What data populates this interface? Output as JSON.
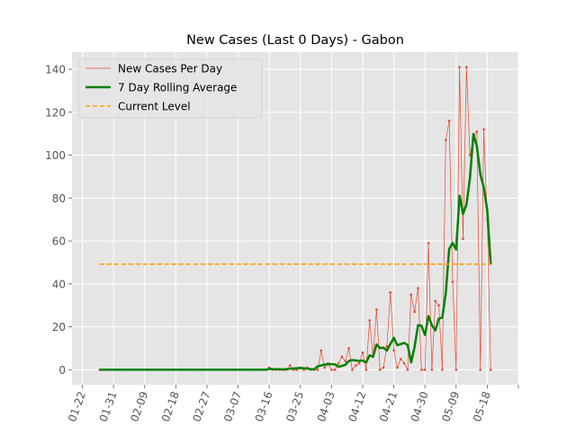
{
  "chart_data": {
    "type": "line",
    "title": "New Cases (Last 0 Days) - Gabon",
    "xlabel": "",
    "ylabel": "",
    "x_start": "2020-01-27",
    "x_end": "2020-05-22",
    "xlim": [
      "2020-01-19",
      "2020-05-27"
    ],
    "ylim": [
      -7,
      148
    ],
    "grid": true,
    "legend_placement": "top-left",
    "x_ticks": [
      {
        "date": "2020-01-22",
        "label": "01-22"
      },
      {
        "date": "2020-01-31",
        "label": "01-31"
      },
      {
        "date": "2020-02-09",
        "label": "02-09"
      },
      {
        "date": "2020-02-18",
        "label": "02-18"
      },
      {
        "date": "2020-02-27",
        "label": "02-27"
      },
      {
        "date": "2020-03-07",
        "label": "03-07"
      },
      {
        "date": "2020-03-16",
        "label": "03-16"
      },
      {
        "date": "2020-03-25",
        "label": "03-25"
      },
      {
        "date": "2020-04-03",
        "label": "04-03"
      },
      {
        "date": "2020-04-12",
        "label": "04-12"
      },
      {
        "date": "2020-04-21",
        "label": "04-21"
      },
      {
        "date": "2020-04-30",
        "label": "04-30"
      },
      {
        "date": "2020-05-09",
        "label": "05-09"
      },
      {
        "date": "2020-05-18",
        "label": "05-18"
      },
      {
        "date": "2020-05-27",
        "label": ""
      }
    ],
    "y_ticks": [
      0,
      20,
      40,
      60,
      80,
      100,
      120,
      140
    ],
    "series": [
      {
        "name": "New Cases Per Day",
        "color": "#e24a33",
        "style": "thin-line-with-markers",
        "values": [
          0,
          0,
          0,
          0,
          0,
          0,
          0,
          0,
          0,
          0,
          0,
          0,
          0,
          0,
          0,
          0,
          0,
          0,
          0,
          0,
          0,
          0,
          0,
          0,
          0,
          0,
          0,
          0,
          0,
          0,
          0,
          0,
          0,
          0,
          0,
          0,
          0,
          0,
          0,
          0,
          0,
          0,
          0,
          0,
          0,
          0,
          0,
          0,
          0,
          1,
          0,
          0,
          0,
          0,
          0,
          2,
          0,
          0,
          1,
          0,
          1,
          0,
          0,
          0,
          9,
          1,
          3,
          0,
          0,
          3,
          6,
          4,
          10,
          0,
          2,
          3,
          8,
          0,
          23,
          6,
          28,
          0,
          1,
          11,
          36,
          9,
          1,
          5,
          3,
          0,
          35,
          27,
          38,
          0,
          0,
          59,
          0,
          32,
          30,
          0,
          107,
          116,
          41,
          0,
          141,
          61,
          141,
          100,
          108,
          111,
          0,
          112,
          70,
          0
        ]
      },
      {
        "name": "7 Day Rolling Average",
        "color": "#008000",
        "style": "thick-line",
        "values": [
          0,
          0,
          0,
          0,
          0,
          0,
          0,
          0,
          0,
          0,
          0,
          0,
          0,
          0,
          0,
          0,
          0,
          0,
          0,
          0,
          0,
          0,
          0,
          0,
          0,
          0,
          0,
          0,
          0,
          0,
          0,
          0,
          0,
          0,
          0,
          0,
          0,
          0,
          0,
          0,
          0,
          0,
          0,
          0,
          0,
          0,
          0,
          0,
          0,
          0.4,
          0.3,
          0.2,
          0.2,
          0.1,
          0.3,
          0.5,
          0.6,
          0.7,
          0.8,
          0.7,
          0.5,
          0.3,
          0.2,
          1.6,
          2.0,
          2.4,
          2.6,
          2.6,
          2.5,
          1.4,
          1.8,
          2.3,
          4.1,
          4.5,
          4.3,
          4.1,
          4.3,
          3.4,
          6.7,
          6.1,
          11.8,
          10.1,
          10.3,
          8.9,
          12.0,
          14.9,
          11.4,
          12.0,
          12.5,
          11.5,
          3.4,
          10.6,
          20.8,
          20.5,
          16.2,
          25.0,
          20.8,
          18.3,
          23.8,
          24.3,
          35.4,
          56.3,
          59.1,
          56.0,
          81.1,
          72.6,
          77.0,
          89.3,
          109.9,
          104.1,
          91.1,
          84.8,
          74.4,
          49.0
        ]
      },
      {
        "name": "Current Level",
        "color": "#ffa500",
        "style": "dashed-horizontal",
        "value": 49.2
      }
    ]
  }
}
